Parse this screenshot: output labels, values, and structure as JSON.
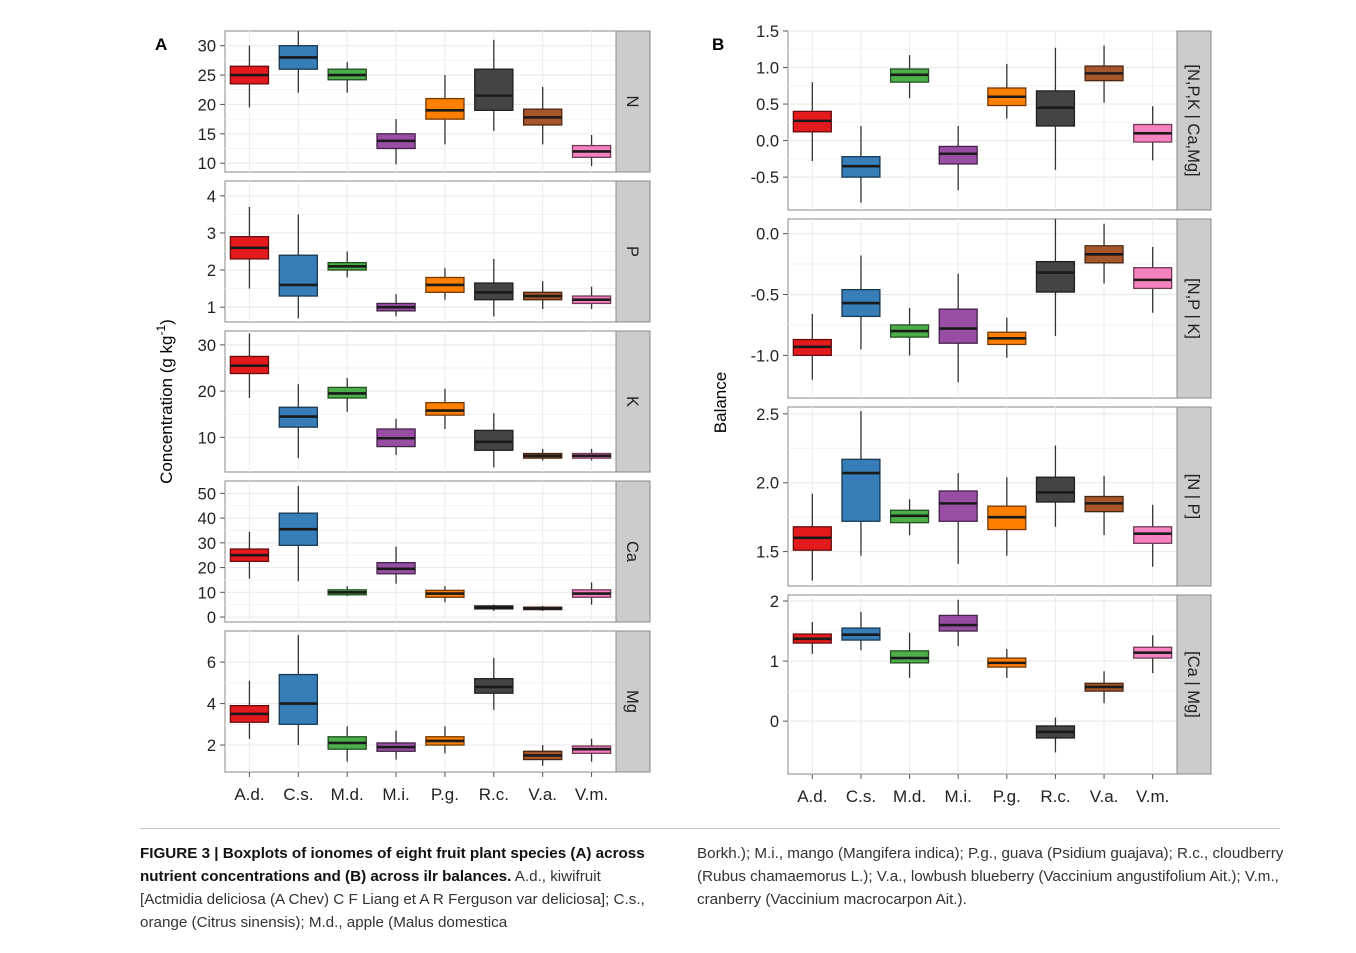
{
  "caption": {
    "label": "FIGURE 3 | Boxplots of ionomes of eight fruit plant species (A) across nutrient concentrations and (B) across ilr balances.",
    "text_left": "A.d., kiwifruit [Actmidia deliciosa (A Chev) C F Liang et A R Ferguson var deliciosa]; C.s., orange (Citrus sinensis); M.d., apple (Malus domestica",
    "text_right": "Borkh.); M.i., mango (Mangifera indica); P.g., guava (Psidium guajava); R.c., cloudberry (Rubus chamaemorus L.); V.a., lowbush blueberry (Vaccinium angustifolium Ait.); V.m., cranberry (Vaccinium macrocarpon Ait.)."
  },
  "colors": {
    "species": [
      "#e41a1c",
      "#377eb8",
      "#4daf4a",
      "#984ea3",
      "#ff7f00",
      "#444444",
      "#a65628",
      "#f781bf"
    ],
    "strip_fill": "#cccccc",
    "panel_bg": "#ffffff",
    "grid": "#ebebeb"
  },
  "chart_data": [
    {
      "type": "box",
      "panel_label": "A",
      "ylabel": "Concentration (g kg-1)",
      "categories": [
        "A.d.",
        "C.s.",
        "M.d.",
        "M.i.",
        "P.g.",
        "R.c.",
        "V.a.",
        "V.m."
      ],
      "facets": [
        {
          "strip": "N",
          "ylim": [
            8.5,
            32.5
          ],
          "yticks": [
            10,
            15,
            20,
            25,
            30
          ],
          "boxes": [
            {
              "min": 19.5,
              "q1": 23.5,
              "median": 25,
              "q3": 26.5,
              "max": 30
            },
            {
              "min": 22,
              "q1": 26,
              "median": 28,
              "q3": 30,
              "max": 32.5
            },
            {
              "min": 22,
              "q1": 24.2,
              "median": 25,
              "q3": 26,
              "max": 27.2
            },
            {
              "min": 9.8,
              "q1": 12.5,
              "median": 13.8,
              "q3": 15,
              "max": 17.5
            },
            {
              "min": 13.2,
              "q1": 17.5,
              "median": 19,
              "q3": 21,
              "max": 25
            },
            {
              "min": 15.5,
              "q1": 19,
              "median": 21.5,
              "q3": 26,
              "max": 31
            },
            {
              "min": 13.2,
              "q1": 16.5,
              "median": 17.8,
              "q3": 19.2,
              "max": 23
            },
            {
              "min": 9.5,
              "q1": 11,
              "median": 12,
              "q3": 13,
              "max": 14.8
            }
          ]
        },
        {
          "strip": "P",
          "ylim": [
            0.6,
            4.4
          ],
          "yticks": [
            1,
            2,
            3,
            4
          ],
          "boxes": [
            {
              "min": 1.5,
              "q1": 2.3,
              "median": 2.6,
              "q3": 2.9,
              "max": 3.7
            },
            {
              "min": 0.7,
              "q1": 1.3,
              "median": 1.6,
              "q3": 2.4,
              "max": 3.5
            },
            {
              "min": 1.8,
              "q1": 2.0,
              "median": 2.1,
              "q3": 2.2,
              "max": 2.5
            },
            {
              "min": 0.75,
              "q1": 0.9,
              "median": 1.0,
              "q3": 1.1,
              "max": 1.35
            },
            {
              "min": 1.2,
              "q1": 1.4,
              "median": 1.6,
              "q3": 1.8,
              "max": 2.05
            },
            {
              "min": 0.75,
              "q1": 1.2,
              "median": 1.4,
              "q3": 1.65,
              "max": 2.3
            },
            {
              "min": 0.95,
              "q1": 1.2,
              "median": 1.3,
              "q3": 1.4,
              "max": 1.7
            },
            {
              "min": 0.95,
              "q1": 1.1,
              "median": 1.2,
              "q3": 1.3,
              "max": 1.55
            }
          ]
        },
        {
          "strip": "K",
          "ylim": [
            2.5,
            33
          ],
          "yticks": [
            10,
            20,
            30
          ],
          "boxes": [
            {
              "min": 18.5,
              "q1": 23.8,
              "median": 25.5,
              "q3": 27.5,
              "max": 32.5
            },
            {
              "min": 5.5,
              "q1": 12.2,
              "median": 14.5,
              "q3": 16.5,
              "max": 21.5
            },
            {
              "min": 15.5,
              "q1": 18.5,
              "median": 19.5,
              "q3": 20.8,
              "max": 22.8
            },
            {
              "min": 6.2,
              "q1": 8,
              "median": 9.8,
              "q3": 11.8,
              "max": 14
            },
            {
              "min": 11.8,
              "q1": 14.8,
              "median": 15.8,
              "q3": 17.5,
              "max": 20.5
            },
            {
              "min": 3.5,
              "q1": 7.2,
              "median": 9,
              "q3": 11.5,
              "max": 15.2
            },
            {
              "min": 5,
              "q1": 5.5,
              "median": 6,
              "q3": 6.5,
              "max": 7.5
            },
            {
              "min": 5,
              "q1": 5.5,
              "median": 6,
              "q3": 6.5,
              "max": 7.5
            }
          ]
        },
        {
          "strip": "Ca",
          "ylim": [
            -2,
            55
          ],
          "yticks": [
            0,
            10,
            20,
            30,
            40,
            50
          ],
          "boxes": [
            {
              "min": 15.5,
              "q1": 22.5,
              "median": 25,
              "q3": 27.5,
              "max": 34.5
            },
            {
              "min": 14.5,
              "q1": 29,
              "median": 35.5,
              "q3": 42,
              "max": 53
            },
            {
              "min": 8.5,
              "q1": 9,
              "median": 10,
              "q3": 11,
              "max": 12.5
            },
            {
              "min": 13.5,
              "q1": 17.5,
              "median": 19.5,
              "q3": 22,
              "max": 28.5
            },
            {
              "min": 6,
              "q1": 8,
              "median": 9.5,
              "q3": 10.8,
              "max": 12.5
            },
            {
              "min": 2.5,
              "q1": 3.3,
              "median": 4,
              "q3": 4.5,
              "max": 5
            },
            {
              "min": 2.5,
              "q1": 3,
              "median": 3.5,
              "q3": 4,
              "max": 4.5
            },
            {
              "min": 5,
              "q1": 8,
              "median": 9.5,
              "q3": 11,
              "max": 14
            }
          ]
        },
        {
          "strip": "Mg",
          "ylim": [
            0.7,
            7.5
          ],
          "yticks": [
            2,
            4,
            6
          ],
          "boxes": [
            {
              "min": 2.3,
              "q1": 3.1,
              "median": 3.5,
              "q3": 3.9,
              "max": 5.1
            },
            {
              "min": 2,
              "q1": 3,
              "median": 4,
              "q3": 5.4,
              "max": 7.3
            },
            {
              "min": 1.2,
              "q1": 1.8,
              "median": 2.1,
              "q3": 2.4,
              "max": 2.9
            },
            {
              "min": 1.3,
              "q1": 1.7,
              "median": 1.9,
              "q3": 2.1,
              "max": 2.7
            },
            {
              "min": 1.6,
              "q1": 2.0,
              "median": 2.2,
              "q3": 2.4,
              "max": 2.9
            },
            {
              "min": 3.7,
              "q1": 4.5,
              "median": 4.8,
              "q3": 5.2,
              "max": 6.2
            },
            {
              "min": 1.0,
              "q1": 1.3,
              "median": 1.5,
              "q3": 1.7,
              "max": 2.0
            },
            {
              "min": 1.2,
              "q1": 1.6,
              "median": 1.8,
              "q3": 1.95,
              "max": 2.3
            }
          ]
        }
      ]
    },
    {
      "type": "box",
      "panel_label": "B",
      "ylabel": "Balance",
      "categories": [
        "A.d.",
        "C.s.",
        "M.d.",
        "M.i.",
        "P.g.",
        "R.c.",
        "V.a.",
        "V.m."
      ],
      "facets": [
        {
          "strip": "[N,P,K | Ca,Mg]",
          "ylim": [
            -0.95,
            1.5
          ],
          "yticks": [
            -0.5,
            0.0,
            0.5,
            1.0,
            1.5
          ],
          "tick_labels": [
            "-0.5",
            "0.0",
            "0.5",
            "1.0",
            "1.5"
          ],
          "boxes": [
            {
              "min": -0.28,
              "q1": 0.12,
              "median": 0.27,
              "q3": 0.4,
              "max": 0.8
            },
            {
              "min": -0.85,
              "q1": -0.5,
              "median": -0.35,
              "q3": -0.22,
              "max": 0.2
            },
            {
              "min": 0.58,
              "q1": 0.8,
              "median": 0.9,
              "q3": 0.98,
              "max": 1.17
            },
            {
              "min": -0.68,
              "q1": -0.32,
              "median": -0.18,
              "q3": -0.08,
              "max": 0.2
            },
            {
              "min": 0.3,
              "q1": 0.48,
              "median": 0.6,
              "q3": 0.72,
              "max": 1.05
            },
            {
              "min": -0.4,
              "q1": 0.2,
              "median": 0.45,
              "q3": 0.68,
              "max": 1.27
            },
            {
              "min": 0.52,
              "q1": 0.82,
              "median": 0.92,
              "q3": 1.02,
              "max": 1.3
            },
            {
              "min": -0.27,
              "q1": -0.02,
              "median": 0.1,
              "q3": 0.22,
              "max": 0.47
            }
          ]
        },
        {
          "strip": "[N,P | K]",
          "ylim": [
            -1.35,
            0.12
          ],
          "yticks": [
            -1.0,
            -0.5,
            0.0
          ],
          "tick_labels": [
            "-1.0",
            "-0.5",
            "0.0"
          ],
          "boxes": [
            {
              "min": -1.2,
              "q1": -1.0,
              "median": -0.93,
              "q3": -0.87,
              "max": -0.66
            },
            {
              "min": -0.95,
              "q1": -0.68,
              "median": -0.57,
              "q3": -0.46,
              "max": -0.18
            },
            {
              "min": -1.0,
              "q1": -0.85,
              "median": -0.8,
              "q3": -0.75,
              "max": -0.61
            },
            {
              "min": -1.22,
              "q1": -0.9,
              "median": -0.78,
              "q3": -0.62,
              "max": -0.33
            },
            {
              "min": -1.02,
              "q1": -0.91,
              "median": -0.86,
              "q3": -0.81,
              "max": -0.69
            },
            {
              "min": -0.84,
              "q1": -0.48,
              "median": -0.32,
              "q3": -0.23,
              "max": 0.12
            },
            {
              "min": -0.41,
              "q1": -0.24,
              "median": -0.17,
              "q3": -0.1,
              "max": 0.08
            },
            {
              "min": -0.65,
              "q1": -0.45,
              "median": -0.38,
              "q3": -0.28,
              "max": -0.11
            }
          ]
        },
        {
          "strip": "[N | P]",
          "ylim": [
            1.25,
            2.55
          ],
          "yticks": [
            1.5,
            2.0,
            2.5
          ],
          "tick_labels": [
            "1.5",
            "2.0",
            "2.5"
          ],
          "boxes": [
            {
              "min": 1.29,
              "q1": 1.51,
              "median": 1.6,
              "q3": 1.68,
              "max": 1.92
            },
            {
              "min": 1.47,
              "q1": 1.72,
              "median": 2.07,
              "q3": 2.17,
              "max": 2.52
            },
            {
              "min": 1.62,
              "q1": 1.71,
              "median": 1.76,
              "q3": 1.8,
              "max": 1.88
            },
            {
              "min": 1.41,
              "q1": 1.72,
              "median": 1.85,
              "q3": 1.94,
              "max": 2.07
            },
            {
              "min": 1.47,
              "q1": 1.66,
              "median": 1.75,
              "q3": 1.83,
              "max": 2.04
            },
            {
              "min": 1.68,
              "q1": 1.86,
              "median": 1.93,
              "q3": 2.04,
              "max": 2.27
            },
            {
              "min": 1.62,
              "q1": 1.79,
              "median": 1.85,
              "q3": 1.9,
              "max": 2.05
            },
            {
              "min": 1.39,
              "q1": 1.56,
              "median": 1.63,
              "q3": 1.68,
              "max": 1.84
            }
          ]
        },
        {
          "strip": "[Ca | Mg]",
          "ylim": [
            -0.88,
            2.1
          ],
          "yticks": [
            0,
            1,
            2
          ],
          "tick_labels": [
            "0",
            "1",
            "2"
          ],
          "boxes": [
            {
              "min": 1.12,
              "q1": 1.3,
              "median": 1.37,
              "q3": 1.45,
              "max": 1.65
            },
            {
              "min": 1.18,
              "q1": 1.35,
              "median": 1.44,
              "q3": 1.55,
              "max": 1.82
            },
            {
              "min": 0.72,
              "q1": 0.97,
              "median": 1.05,
              "q3": 1.17,
              "max": 1.47
            },
            {
              "min": 1.25,
              "q1": 1.5,
              "median": 1.6,
              "q3": 1.76,
              "max": 2.02
            },
            {
              "min": 0.72,
              "q1": 0.9,
              "median": 0.97,
              "q3": 1.05,
              "max": 1.2
            },
            {
              "min": -0.52,
              "q1": -0.28,
              "median": -0.18,
              "q3": -0.08,
              "max": 0.06
            },
            {
              "min": 0.3,
              "q1": 0.5,
              "median": 0.57,
              "q3": 0.63,
              "max": 0.83
            },
            {
              "min": 0.8,
              "q1": 1.05,
              "median": 1.14,
              "q3": 1.23,
              "max": 1.43
            }
          ]
        }
      ]
    }
  ]
}
